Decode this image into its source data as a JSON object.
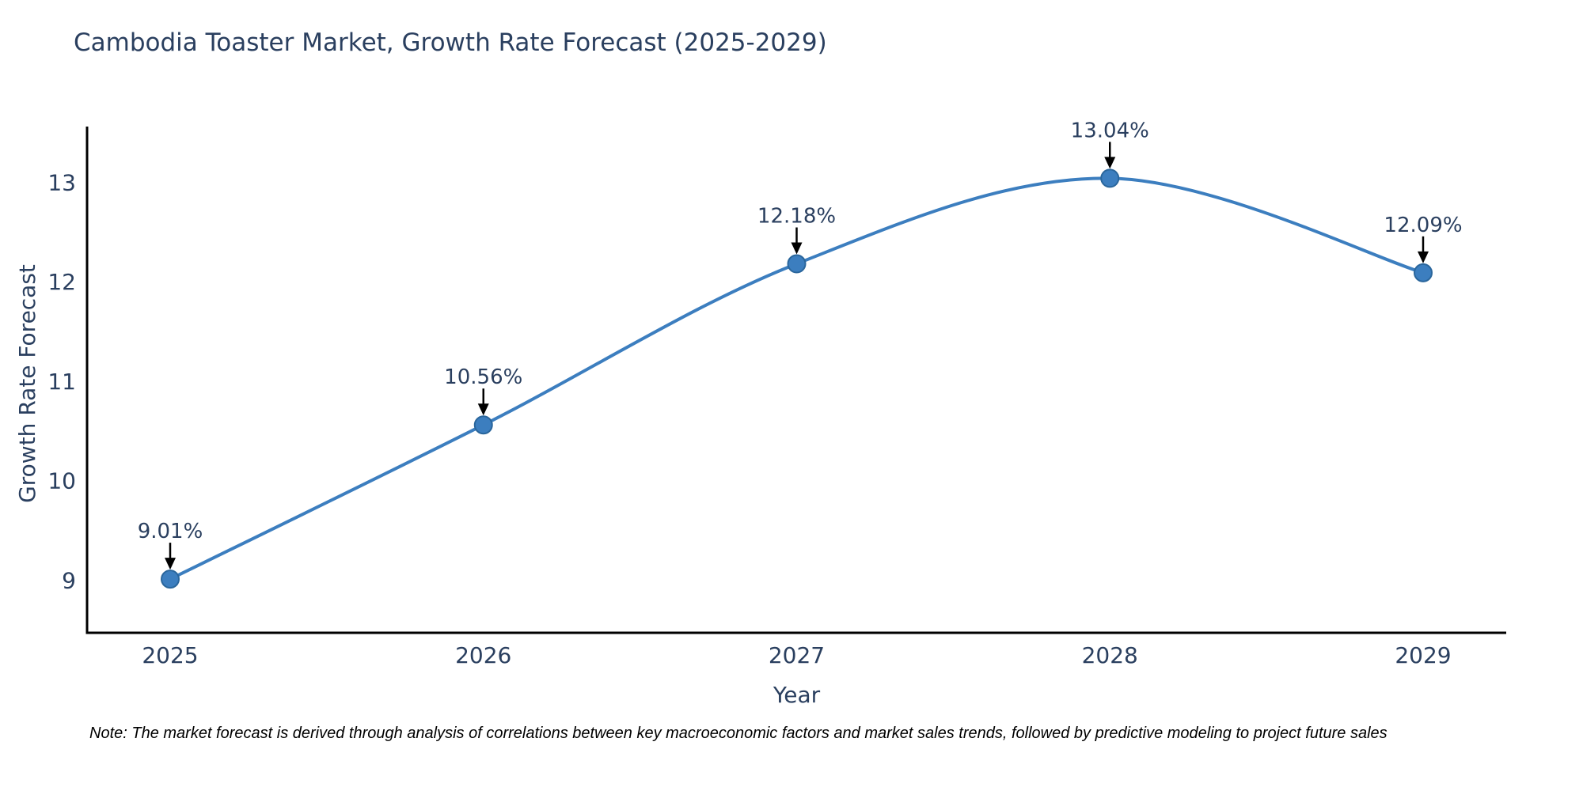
{
  "note": "Note: The market forecast is derived through analysis of correlations between key macroeconomic factors and market sales trends, followed by predictive modeling to project future sales",
  "chart_data": {
    "type": "line",
    "title": "Cambodia Toaster Market, Growth Rate Forecast (2025-2029)",
    "xlabel": "Year",
    "ylabel": "Growth Rate Forecast",
    "categories": [
      "2025",
      "2026",
      "2027",
      "2028",
      "2029"
    ],
    "series": [
      {
        "name": "Growth Rate Forecast",
        "values": [
          9.01,
          10.56,
          12.18,
          13.04,
          12.09
        ]
      }
    ],
    "point_labels": [
      "9.01%",
      "10.56%",
      "12.18%",
      "13.04%",
      "12.09%"
    ],
    "y_ticks": [
      9,
      10,
      11,
      12,
      13
    ],
    "ylim": [
      8.47,
      13.56
    ],
    "grid": false,
    "legend": "none",
    "curve": "spline",
    "colors": {
      "line": "#3c7ebf",
      "marker": "#3c7ebf",
      "marker_border": "#2a669c",
      "arrow": "#000000",
      "text": "#2a3f5f",
      "axis": "#000000",
      "note": "#000000",
      "background": "#ffffff"
    }
  }
}
